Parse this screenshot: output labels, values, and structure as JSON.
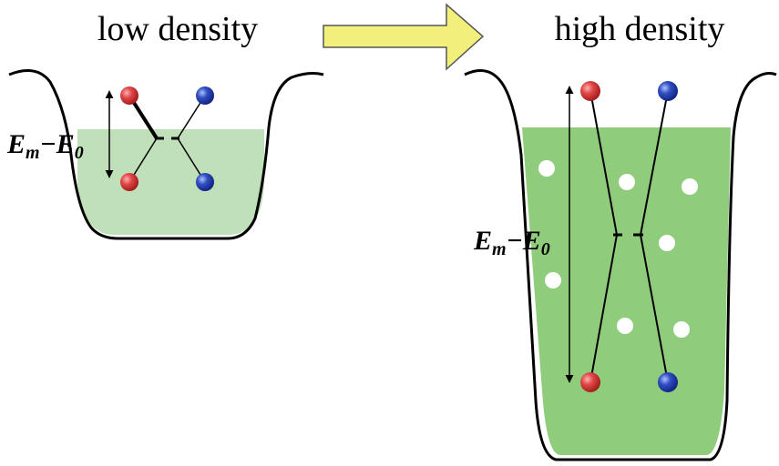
{
  "panels": [
    {
      "title": "low density",
      "energy_label": {
        "symbol1": "E",
        "sub1": "m",
        "symbol2": "−E",
        "sub2": "0"
      }
    },
    {
      "title": "high density",
      "energy_label": {
        "symbol1": "E",
        "sub1": "m",
        "symbol2": "−E",
        "sub2": "0"
      }
    }
  ]
}
